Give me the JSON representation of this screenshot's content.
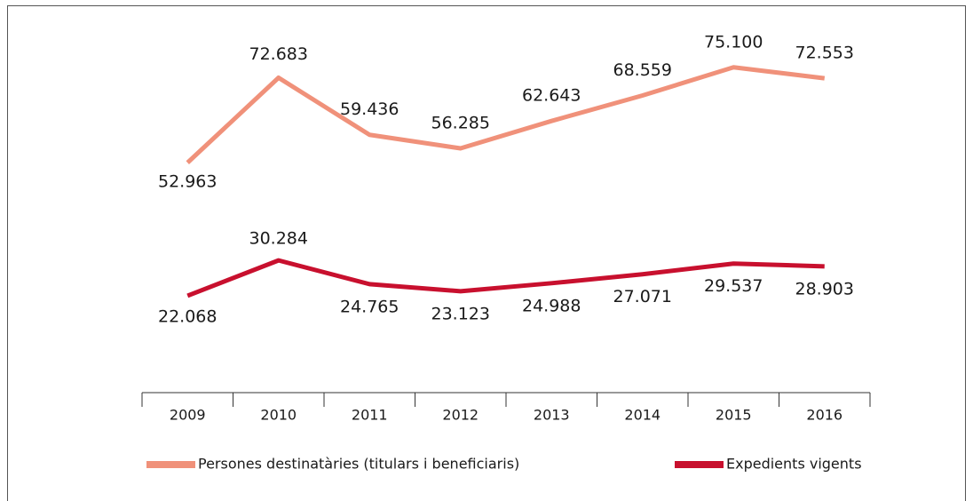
{
  "chart_data": {
    "type": "line",
    "categories": [
      "2009",
      "2010",
      "2011",
      "2012",
      "2013",
      "2014",
      "2015",
      "2016"
    ],
    "series": [
      {
        "name": "Persones destinatàries (titulars i beneficiaris)",
        "color": "#f0917a",
        "values": [
          52963,
          72683,
          59436,
          56285,
          62643,
          68559,
          75100,
          72553
        ],
        "value_labels": [
          "52.963",
          "72.683",
          "59.436",
          "56.285",
          "62.643",
          "68.559",
          "75.100",
          "72.553"
        ]
      },
      {
        "name": "Expedients vigents",
        "color": "#c8102e",
        "values": [
          22068,
          30284,
          24765,
          23123,
          24988,
          27071,
          29537,
          28903
        ],
        "value_labels": [
          "22.068",
          "30.284",
          "24.765",
          "23.123",
          "24.988",
          "27.071",
          "29.537",
          "28.903"
        ]
      }
    ],
    "ylim": [
      0,
      80000
    ]
  }
}
